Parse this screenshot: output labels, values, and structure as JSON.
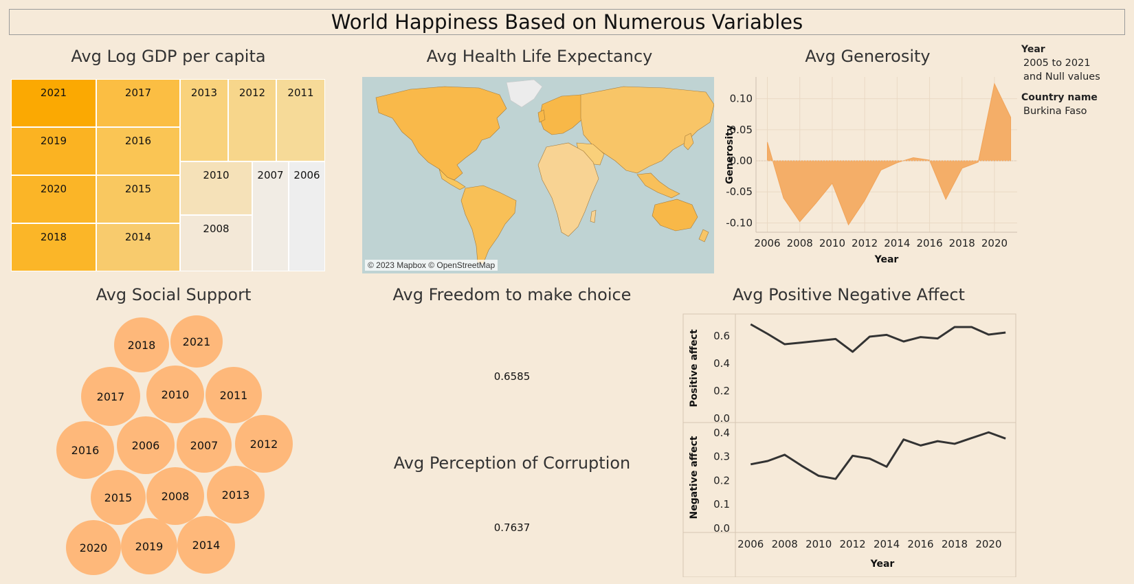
{
  "dashboard": {
    "title": "World Happiness Based on Numerous Variables",
    "colors": {
      "background": "#f6ead9",
      "orange": "#f4ae68",
      "bubble": "#feb87a",
      "line": "#333333"
    }
  },
  "gdp": {
    "title": "Avg Log GDP per capita",
    "cells": [
      {
        "label": "2021",
        "color": "#fba902"
      },
      {
        "label": "2017",
        "color": "#fbbe43"
      },
      {
        "label": "2013",
        "color": "#f9d27c"
      },
      {
        "label": "2012",
        "color": "#f7d68b"
      },
      {
        "label": "2011",
        "color": "#f6da98"
      },
      {
        "label": "2019",
        "color": "#fbb322"
      },
      {
        "label": "2016",
        "color": "#fac554"
      },
      {
        "label": "2020",
        "color": "#fbb527"
      },
      {
        "label": "2015",
        "color": "#f9c860"
      },
      {
        "label": "2010",
        "color": "#f5e1b8"
      },
      {
        "label": "2007",
        "color": "#f1ece4"
      },
      {
        "label": "2006",
        "color": "#eeeeee"
      },
      {
        "label": "2018",
        "color": "#fbb628"
      },
      {
        "label": "2014",
        "color": "#f8cb6d"
      },
      {
        "label": "2008",
        "color": "#f3e8d7"
      }
    ]
  },
  "health": {
    "title": "Avg Health Life Expectancy",
    "attribution": "© 2023 Mapbox © OpenStreetMap"
  },
  "social": {
    "title": "Avg Social Support",
    "bubbles": [
      "2018",
      "2021",
      "2017",
      "2010",
      "2011",
      "2016",
      "2006",
      "2007",
      "2012",
      "2015",
      "2008",
      "2013",
      "2020",
      "2019",
      "2014"
    ]
  },
  "freedom": {
    "title": "Avg Freedom to make choice",
    "value": "0.6585"
  },
  "corruption": {
    "title": "Avg Perception of Corruption",
    "value": "0.7637"
  },
  "filters": {
    "year_label": "Year",
    "year_value_1": "2005 to 2021",
    "year_value_2": "and Null values",
    "country_label": "Country name",
    "country_value": "Burkina Faso"
  },
  "chart_data": [
    {
      "type": "area",
      "title": "Avg Generosity",
      "xlabel": "Year",
      "ylabel": "Generosity",
      "x": [
        2006,
        2007,
        2008,
        2009,
        2010,
        2011,
        2012,
        2013,
        2014,
        2015,
        2016,
        2017,
        2018,
        2019,
        2020,
        2021
      ],
      "values": [
        0.03,
        -0.06,
        -0.098,
        -0.068,
        -0.036,
        -0.103,
        -0.064,
        -0.015,
        -0.003,
        0.005,
        0.001,
        -0.062,
        -0.012,
        -0.002,
        0.124,
        0.07
      ],
      "xticks": [
        "2006",
        "2008",
        "2010",
        "2012",
        "2014",
        "2016",
        "2018",
        "2020"
      ],
      "yticks": [
        "0.10",
        "0.05",
        "0.00",
        "-0.05",
        "-0.10"
      ],
      "ylim": [
        -0.115,
        0.135
      ]
    },
    {
      "type": "line",
      "title": "Avg Positive Negative Affect",
      "xlabel": "Year",
      "x": [
        2006,
        2007,
        2008,
        2009,
        2010,
        2011,
        2012,
        2013,
        2014,
        2015,
        2016,
        2017,
        2018,
        2019,
        2020,
        2021
      ],
      "xticks": [
        "2006",
        "2008",
        "2010",
        "2012",
        "2014",
        "2016",
        "2018",
        "2020"
      ],
      "series": [
        {
          "name": "Positive affect",
          "values": [
            0.685,
            0.615,
            0.54,
            0.552,
            0.565,
            0.578,
            0.485,
            0.595,
            0.608,
            0.56,
            0.592,
            0.582,
            0.665,
            0.665,
            0.61,
            0.625
          ],
          "yticks": [
            "0.6",
            "0.4",
            "0.2",
            "0.0"
          ],
          "ylim": [
            0,
            0.72
          ]
        },
        {
          "name": "Negative affect",
          "values": [
            0.268,
            0.282,
            0.308,
            0.262,
            0.22,
            0.207,
            0.304,
            0.292,
            0.258,
            0.372,
            0.347,
            0.365,
            0.354,
            0.378,
            0.402,
            0.376
          ],
          "yticks": [
            "0.4",
            "0.3",
            "0.2",
            "0.1",
            "0.0"
          ],
          "ylim": [
            0,
            0.42
          ]
        }
      ]
    }
  ]
}
